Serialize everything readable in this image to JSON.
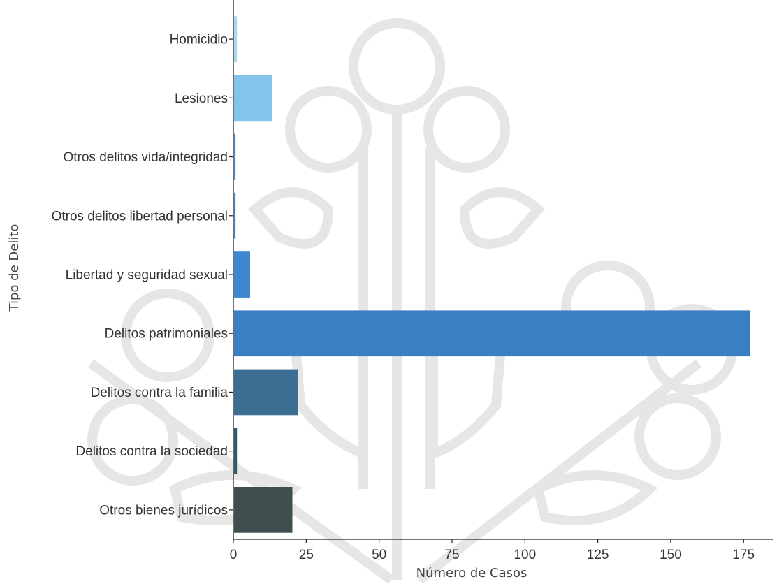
{
  "chart_data": {
    "type": "bar",
    "orientation": "horizontal",
    "categories": [
      "Homicidio",
      "Lesiones",
      "Otros delitos vida/integridad",
      "Otros delitos libertad personal",
      "Libertad y seguridad sexual",
      "Delitos patrimoniales",
      "Delitos contra la familia",
      "Delitos contra la sociedad",
      "Otros bienes jurídicos"
    ],
    "values": [
      1,
      13,
      0.5,
      0.5,
      5.5,
      177,
      22,
      1,
      20
    ],
    "colors": [
      "#a9d7f0",
      "#84c4ea",
      "#3f8fd0",
      "#3a86c8",
      "#3e86cf",
      "#3a7fc2",
      "#3c6d92",
      "#33596e",
      "#3f4f50"
    ],
    "xlabel": "Número de Casos",
    "ylabel": "Tipo de Delito",
    "xlim": [
      0,
      185
    ],
    "xticks": [
      0,
      25,
      50,
      75,
      100,
      125,
      150,
      175
    ],
    "grid": false
  }
}
